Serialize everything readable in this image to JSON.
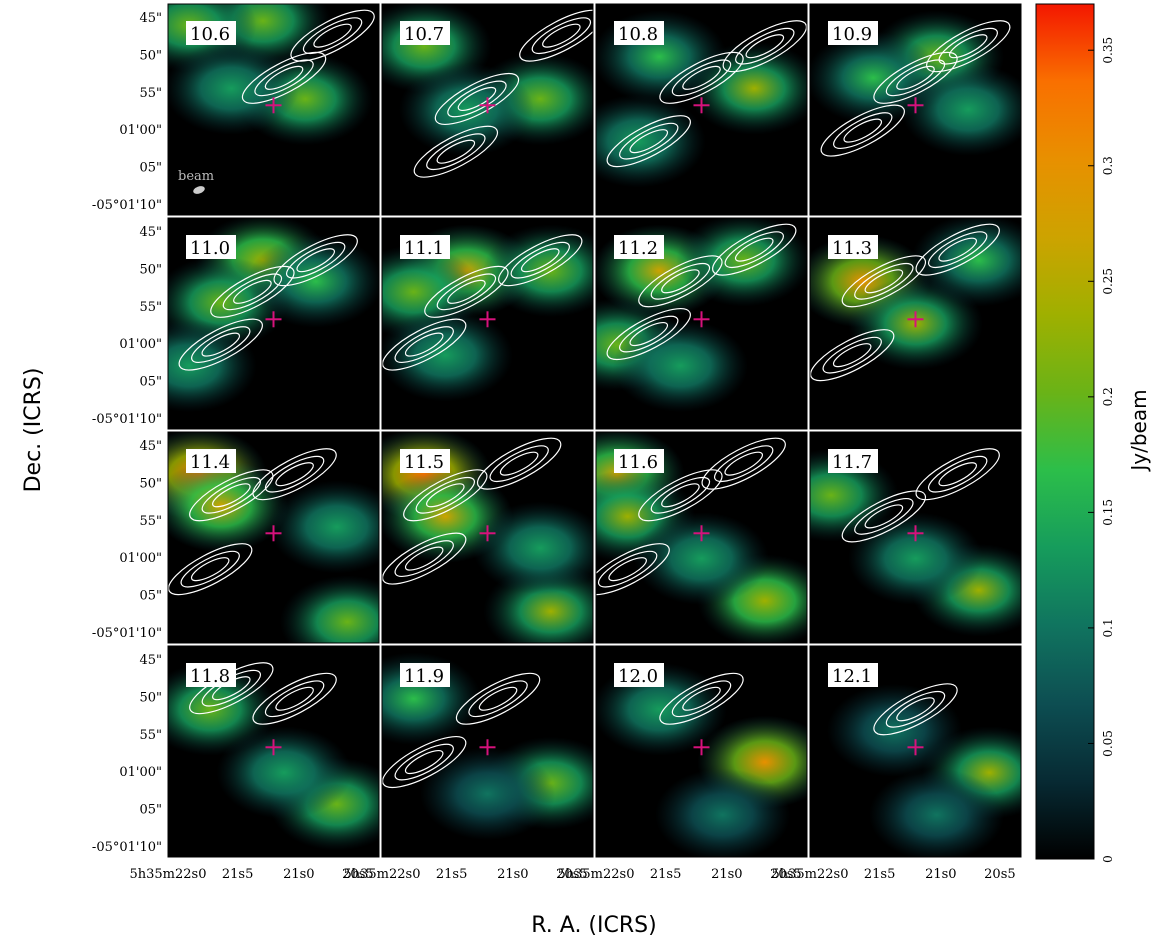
{
  "chart_data": {
    "type": "heatmap",
    "title": "",
    "xlabel": "R. A. (ICRS)",
    "ylabel": "Dec. (ICRS)",
    "grid": false,
    "layout": {
      "rows": 4,
      "cols": 4
    },
    "panels": [
      {
        "velocity": "10.6",
        "peaks": [
          [
            0.45,
            0.08,
            0.55
          ],
          [
            0.1,
            0.1,
            0.5
          ],
          [
            0.65,
            0.45,
            0.55
          ],
          [
            0.3,
            0.4,
            0.35
          ]
        ],
        "contours": [
          [
            0.78,
            0.15
          ],
          [
            0.55,
            0.35
          ]
        ]
      },
      {
        "velocity": "10.7",
        "peaks": [
          [
            0.2,
            0.2,
            0.5
          ],
          [
            0.75,
            0.45,
            0.55
          ],
          [
            0.4,
            0.5,
            0.35
          ]
        ],
        "contours": [
          [
            0.85,
            0.15
          ],
          [
            0.45,
            0.45
          ],
          [
            0.35,
            0.7
          ]
        ]
      },
      {
        "velocity": "10.8",
        "peaks": [
          [
            0.3,
            0.25,
            0.45
          ],
          [
            0.75,
            0.4,
            0.6
          ],
          [
            0.2,
            0.65,
            0.4
          ]
        ],
        "contours": [
          [
            0.5,
            0.35
          ],
          [
            0.25,
            0.65
          ],
          [
            0.8,
            0.2
          ]
        ]
      },
      {
        "velocity": "10.9",
        "peaks": [
          [
            0.6,
            0.25,
            0.55
          ],
          [
            0.3,
            0.35,
            0.45
          ],
          [
            0.75,
            0.5,
            0.4
          ]
        ],
        "contours": [
          [
            0.5,
            0.35
          ],
          [
            0.25,
            0.6
          ],
          [
            0.75,
            0.2
          ]
        ]
      },
      {
        "velocity": "11.0",
        "peaks": [
          [
            0.45,
            0.2,
            0.65
          ],
          [
            0.25,
            0.4,
            0.5
          ],
          [
            0.7,
            0.3,
            0.45
          ],
          [
            0.1,
            0.7,
            0.35
          ]
        ],
        "contours": [
          [
            0.4,
            0.35
          ],
          [
            0.7,
            0.2
          ],
          [
            0.25,
            0.6
          ]
        ]
      },
      {
        "velocity": "11.1",
        "peaks": [
          [
            0.4,
            0.25,
            0.7
          ],
          [
            0.15,
            0.35,
            0.55
          ],
          [
            0.8,
            0.25,
            0.5
          ],
          [
            0.3,
            0.65,
            0.4
          ]
        ],
        "contours": [
          [
            0.4,
            0.35
          ],
          [
            0.75,
            0.2
          ],
          [
            0.2,
            0.6
          ]
        ]
      },
      {
        "velocity": "11.2",
        "peaks": [
          [
            0.3,
            0.25,
            0.7
          ],
          [
            0.1,
            0.6,
            0.55
          ],
          [
            0.7,
            0.2,
            0.5
          ],
          [
            0.4,
            0.7,
            0.4
          ]
        ],
        "contours": [
          [
            0.4,
            0.3
          ],
          [
            0.75,
            0.15
          ],
          [
            0.25,
            0.55
          ]
        ]
      },
      {
        "velocity": "11.3",
        "peaks": [
          [
            0.25,
            0.3,
            0.8
          ],
          [
            0.5,
            0.5,
            0.6
          ],
          [
            0.8,
            0.2,
            0.45
          ]
        ],
        "contours": [
          [
            0.35,
            0.3
          ],
          [
            0.7,
            0.15
          ],
          [
            0.2,
            0.65
          ]
        ]
      },
      {
        "velocity": "11.4",
        "peaks": [
          [
            0.15,
            0.2,
            0.95
          ],
          [
            0.25,
            0.35,
            0.75
          ],
          [
            0.85,
            0.9,
            0.55
          ],
          [
            0.8,
            0.45,
            0.35
          ]
        ],
        "contours": [
          [
            0.3,
            0.3
          ],
          [
            0.6,
            0.2
          ],
          [
            0.2,
            0.65
          ]
        ]
      },
      {
        "velocity": "11.5",
        "peaks": [
          [
            0.2,
            0.2,
            0.95
          ],
          [
            0.3,
            0.4,
            0.7
          ],
          [
            0.8,
            0.85,
            0.6
          ],
          [
            0.75,
            0.55,
            0.4
          ]
        ],
        "contours": [
          [
            0.3,
            0.3
          ],
          [
            0.65,
            0.15
          ],
          [
            0.2,
            0.6
          ]
        ]
      },
      {
        "velocity": "11.6",
        "peaks": [
          [
            0.1,
            0.2,
            0.75
          ],
          [
            0.15,
            0.4,
            0.6
          ],
          [
            0.8,
            0.8,
            0.65
          ],
          [
            0.5,
            0.6,
            0.35
          ]
        ],
        "contours": [
          [
            0.4,
            0.3
          ],
          [
            0.7,
            0.15
          ],
          [
            0.15,
            0.65
          ]
        ]
      },
      {
        "velocity": "11.7",
        "peaks": [
          [
            0.1,
            0.3,
            0.5
          ],
          [
            0.8,
            0.75,
            0.6
          ],
          [
            0.5,
            0.6,
            0.35
          ]
        ],
        "contours": [
          [
            0.35,
            0.4
          ],
          [
            0.7,
            0.2
          ]
        ]
      },
      {
        "velocity": "11.8",
        "peaks": [
          [
            0.2,
            0.3,
            0.5
          ],
          [
            0.8,
            0.75,
            0.55
          ],
          [
            0.55,
            0.6,
            0.35
          ]
        ],
        "contours": [
          [
            0.6,
            0.25
          ],
          [
            0.3,
            0.2
          ]
        ]
      },
      {
        "velocity": "11.9",
        "peaks": [
          [
            0.15,
            0.25,
            0.45
          ],
          [
            0.8,
            0.65,
            0.5
          ],
          [
            0.5,
            0.7,
            0.3
          ]
        ],
        "contours": [
          [
            0.55,
            0.25
          ],
          [
            0.2,
            0.55
          ]
        ]
      },
      {
        "velocity": "12.0",
        "peaks": [
          [
            0.8,
            0.55,
            0.8
          ],
          [
            0.3,
            0.3,
            0.35
          ],
          [
            0.6,
            0.8,
            0.3
          ]
        ],
        "contours": [
          [
            0.5,
            0.25
          ]
        ]
      },
      {
        "velocity": "12.1",
        "peaks": [
          [
            0.85,
            0.6,
            0.6
          ],
          [
            0.4,
            0.4,
            0.3
          ],
          [
            0.6,
            0.8,
            0.25
          ]
        ],
        "contours": [
          [
            0.5,
            0.3
          ]
        ]
      }
    ],
    "beam_label": "beam",
    "marker_position": [
      0.5,
      0.48
    ],
    "y_ticks": [
      "45\"",
      "50\"",
      "55\"",
      "01'00\"",
      "05\"",
      "-05°01'10\""
    ],
    "x_ticks": [
      "5h35m22s0",
      "21s5",
      "21s0",
      "20s5"
    ],
    "colorbar": {
      "label": "Jy/beam",
      "min": 0,
      "max": 0.37,
      "ticks": [
        "0",
        "0.05",
        "0.1",
        "0.15",
        "0.2",
        "0.25",
        "0.3",
        "0.35"
      ],
      "tick_values": [
        0,
        0.05,
        0.1,
        0.15,
        0.2,
        0.25,
        0.3,
        0.35
      ],
      "colors": [
        "#000000",
        "#072a33",
        "#0d4e52",
        "#10745f",
        "#169c5c",
        "#2cbe4a",
        "#6ab317",
        "#9fb000",
        "#cda300",
        "#e89000",
        "#f97000",
        "#f41700"
      ]
    },
    "colors": {
      "contour": "#ffffff",
      "marker": "#d6127c",
      "panel_background": "#000000"
    }
  }
}
